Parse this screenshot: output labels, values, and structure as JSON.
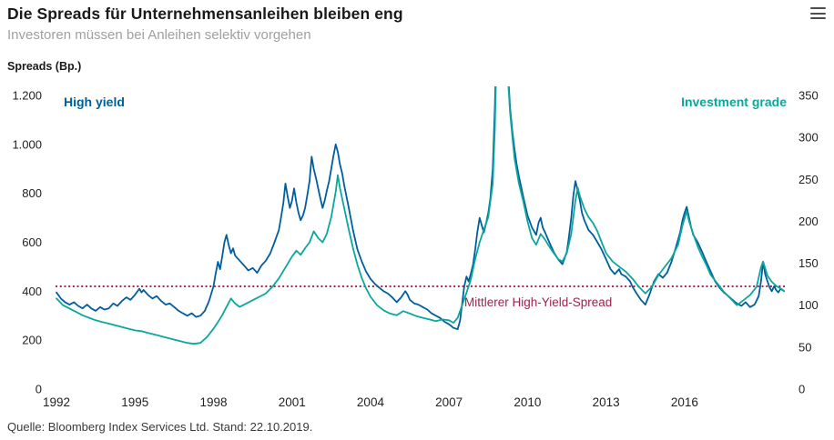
{
  "header": {
    "title": "Die Spreads für Unternehmensanleihen bleiben eng",
    "subtitle": "Investoren müssen bei Anleihen selektiv vorgehen"
  },
  "footer": {
    "source": "Quelle: Bloomberg Index Services Ltd. Stand: 22.10.2019."
  },
  "chart_data": {
    "type": "line",
    "axis_label": "Spreads (Bp.)",
    "x_range": [
      1992,
      2019.83
    ],
    "x_ticks": [
      1992,
      1995,
      1998,
      2001,
      2004,
      2007,
      2010,
      2013,
      2016
    ],
    "left_axis": {
      "min": 0,
      "max": 1200,
      "step": 200,
      "tick_labels": [
        "1.200",
        "1.000",
        "800",
        "600",
        "400",
        "200",
        "0"
      ]
    },
    "right_axis": {
      "min": 0,
      "max": 350,
      "step": 50,
      "tick_labels": [
        "350",
        "300",
        "250",
        "200",
        "150",
        "100",
        "50",
        "0"
      ]
    },
    "grid": "off",
    "reference_line": {
      "label": "Mittlerer High-Yield-Spread",
      "value": 420,
      "axis": "left",
      "color": "#9e2150"
    },
    "series": [
      {
        "name": "High yield",
        "axis": "left",
        "color": "#005e9e",
        "x": [
          1992.0,
          1992.17,
          1992.33,
          1992.5,
          1992.67,
          1992.83,
          1993.0,
          1993.17,
          1993.33,
          1993.5,
          1993.67,
          1993.83,
          1994.0,
          1994.17,
          1994.33,
          1994.5,
          1994.67,
          1994.83,
          1995.0,
          1995.17,
          1995.25,
          1995.33,
          1995.5,
          1995.67,
          1995.83,
          1996.0,
          1996.17,
          1996.33,
          1996.5,
          1996.67,
          1996.83,
          1997.0,
          1997.17,
          1997.33,
          1997.5,
          1997.67,
          1997.83,
          1998.0,
          1998.08,
          1998.17,
          1998.25,
          1998.33,
          1998.42,
          1998.5,
          1998.58,
          1998.67,
          1998.75,
          1998.83,
          1999.0,
          1999.17,
          1999.33,
          1999.5,
          1999.67,
          1999.83,
          2000.0,
          2000.17,
          2000.33,
          2000.5,
          2000.58,
          2000.67,
          2000.75,
          2000.83,
          2000.92,
          2001.0,
          2001.08,
          2001.17,
          2001.25,
          2001.33,
          2001.42,
          2001.5,
          2001.58,
          2001.67,
          2001.75,
          2001.83,
          2001.92,
          2002.0,
          2002.08,
          2002.17,
          2002.25,
          2002.33,
          2002.42,
          2002.5,
          2002.58,
          2002.67,
          2002.75,
          2002.83,
          2002.92,
          2003.0,
          2003.17,
          2003.33,
          2003.5,
          2003.67,
          2003.83,
          2004.0,
          2004.17,
          2004.33,
          2004.5,
          2004.67,
          2004.83,
          2005.0,
          2005.17,
          2005.33,
          2005.42,
          2005.5,
          2005.67,
          2005.83,
          2006.0,
          2006.17,
          2006.33,
          2006.5,
          2006.67,
          2006.83,
          2007.0,
          2007.17,
          2007.33,
          2007.42,
          2007.5,
          2007.58,
          2007.67,
          2007.75,
          2007.83,
          2007.92,
          2008.0,
          2008.08,
          2008.17,
          2008.25,
          2008.33,
          2008.42,
          2008.5,
          2008.58,
          2008.67,
          2008.75,
          2008.83,
          2008.92,
          2009.0,
          2009.08,
          2009.17,
          2009.25,
          2009.33,
          2009.42,
          2009.5,
          2009.58,
          2009.67,
          2009.75,
          2009.83,
          2010.0,
          2010.17,
          2010.33,
          2010.42,
          2010.5,
          2010.58,
          2010.67,
          2010.83,
          2011.0,
          2011.17,
          2011.33,
          2011.5,
          2011.58,
          2011.67,
          2011.75,
          2011.83,
          2011.92,
          2012.0,
          2012.08,
          2012.17,
          2012.33,
          2012.5,
          2012.67,
          2012.83,
          2013.0,
          2013.17,
          2013.33,
          2013.5,
          2013.58,
          2013.75,
          2013.92,
          2014.0,
          2014.17,
          2014.33,
          2014.5,
          2014.67,
          2014.83,
          2015.0,
          2015.17,
          2015.33,
          2015.5,
          2015.67,
          2015.83,
          2015.92,
          2016.0,
          2016.08,
          2016.17,
          2016.25,
          2016.33,
          2016.5,
          2016.67,
          2016.83,
          2017.0,
          2017.17,
          2017.33,
          2017.5,
          2017.67,
          2017.83,
          2018.0,
          2018.17,
          2018.33,
          2018.5,
          2018.67,
          2018.83,
          2018.92,
          2019.0,
          2019.08,
          2019.17,
          2019.25,
          2019.33,
          2019.42,
          2019.5,
          2019.58,
          2019.67,
          2019.8
        ],
        "y": [
          395,
          370,
          355,
          345,
          355,
          340,
          330,
          345,
          330,
          320,
          335,
          325,
          330,
          350,
          340,
          360,
          375,
          365,
          385,
          410,
          395,
          405,
          385,
          370,
          380,
          360,
          345,
          350,
          335,
          320,
          310,
          300,
          310,
          295,
          300,
          320,
          360,
          420,
          470,
          520,
          490,
          540,
          600,
          630,
          590,
          555,
          575,
          545,
          525,
          505,
          485,
          495,
          475,
          505,
          525,
          555,
          600,
          650,
          700,
          760,
          840,
          790,
          740,
          770,
          820,
          760,
          720,
          690,
          710,
          740,
          790,
          850,
          950,
          900,
          860,
          820,
          780,
          740,
          770,
          810,
          850,
          900,
          950,
          1000,
          970,
          920,
          880,
          830,
          740,
          650,
          570,
          520,
          480,
          450,
          430,
          415,
          400,
          390,
          375,
          355,
          375,
          400,
          385,
          365,
          350,
          345,
          335,
          325,
          310,
          300,
          290,
          275,
          265,
          250,
          245,
          280,
          350,
          420,
          460,
          440,
          470,
          510,
          570,
          640,
          700,
          670,
          640,
          680,
          720,
          780,
          900,
          1150,
          1500,
          1750,
          1800,
          1650,
          1500,
          1300,
          1150,
          1050,
          980,
          920,
          870,
          830,
          790,
          710,
          660,
          630,
          680,
          700,
          660,
          640,
          600,
          560,
          530,
          510,
          560,
          620,
          700,
          790,
          850,
          810,
          770,
          720,
          690,
          650,
          630,
          600,
          570,
          530,
          490,
          470,
          490,
          470,
          460,
          440,
          420,
          390,
          365,
          345,
          390,
          440,
          470,
          455,
          475,
          520,
          580,
          640,
          690,
          720,
          745,
          700,
          660,
          630,
          600,
          560,
          520,
          480,
          440,
          415,
          395,
          380,
          365,
          350,
          340,
          355,
          335,
          345,
          380,
          440,
          520,
          470,
          440,
          415,
          400,
          420,
          405,
          395,
          410,
          400
        ]
      },
      {
        "name": "Investment grade",
        "axis": "right",
        "color": "#0aa79c",
        "x": [
          1992.0,
          1992.25,
          1992.5,
          1992.75,
          1993.0,
          1993.25,
          1993.5,
          1993.75,
          1994.0,
          1994.25,
          1994.5,
          1994.75,
          1995.0,
          1995.25,
          1995.5,
          1995.75,
          1996.0,
          1996.25,
          1996.5,
          1996.75,
          1997.0,
          1997.25,
          1997.5,
          1997.75,
          1998.0,
          1998.17,
          1998.33,
          1998.5,
          1998.67,
          1998.83,
          1999.0,
          1999.25,
          1999.5,
          1999.75,
          2000.0,
          2000.25,
          2000.5,
          2000.75,
          2001.0,
          2001.17,
          2001.33,
          2001.5,
          2001.67,
          2001.83,
          2002.0,
          2002.17,
          2002.33,
          2002.5,
          2002.67,
          2002.75,
          2002.83,
          2003.0,
          2003.17,
          2003.33,
          2003.5,
          2003.67,
          2003.83,
          2004.0,
          2004.25,
          2004.5,
          2004.75,
          2005.0,
          2005.25,
          2005.5,
          2005.75,
          2006.0,
          2006.25,
          2006.5,
          2006.75,
          2007.0,
          2007.17,
          2007.33,
          2007.5,
          2007.67,
          2007.83,
          2008.0,
          2008.17,
          2008.33,
          2008.5,
          2008.67,
          2008.75,
          2008.83,
          2008.92,
          2009.0,
          2009.08,
          2009.17,
          2009.25,
          2009.33,
          2009.42,
          2009.5,
          2009.67,
          2009.83,
          2010.0,
          2010.17,
          2010.33,
          2010.5,
          2010.67,
          2010.83,
          2011.0,
          2011.17,
          2011.33,
          2011.5,
          2011.67,
          2011.83,
          2011.92,
          2012.0,
          2012.17,
          2012.33,
          2012.5,
          2012.67,
          2012.83,
          2013.0,
          2013.25,
          2013.5,
          2013.75,
          2014.0,
          2014.25,
          2014.5,
          2014.75,
          2015.0,
          2015.25,
          2015.5,
          2015.75,
          2015.92,
          2016.08,
          2016.17,
          2016.33,
          2016.5,
          2016.67,
          2016.83,
          2017.0,
          2017.25,
          2017.5,
          2017.75,
          2018.0,
          2018.25,
          2018.5,
          2018.75,
          2018.92,
          2019.0,
          2019.17,
          2019.33,
          2019.5,
          2019.67,
          2019.8
        ],
        "y": [
          108,
          100,
          96,
          92,
          88,
          85,
          82,
          80,
          78,
          76,
          74,
          72,
          70,
          69,
          67,
          65,
          63,
          61,
          59,
          57,
          55,
          54,
          55,
          62,
          72,
          80,
          88,
          98,
          108,
          102,
          98,
          102,
          106,
          110,
          114,
          122,
          132,
          145,
          158,
          165,
          160,
          168,
          175,
          188,
          180,
          175,
          185,
          205,
          235,
          255,
          240,
          215,
          190,
          168,
          148,
          132,
          120,
          110,
          100,
          94,
          90,
          88,
          93,
          90,
          87,
          85,
          83,
          81,
          83,
          82,
          79,
          85,
          100,
          115,
          130,
          155,
          175,
          190,
          205,
          245,
          310,
          420,
          510,
          520,
          470,
          420,
          370,
          330,
          300,
          275,
          245,
          225,
          200,
          180,
          172,
          185,
          178,
          170,
          162,
          155,
          152,
          162,
          185,
          225,
          240,
          230,
          215,
          205,
          198,
          188,
          175,
          162,
          152,
          146,
          140,
          132,
          122,
          114,
          122,
          136,
          146,
          156,
          172,
          195,
          212,
          200,
          185,
          170,
          158,
          148,
          136,
          126,
          116,
          108,
          100,
          106,
          112,
          122,
          145,
          152,
          135,
          128,
          123,
          120,
          117
        ]
      }
    ]
  }
}
